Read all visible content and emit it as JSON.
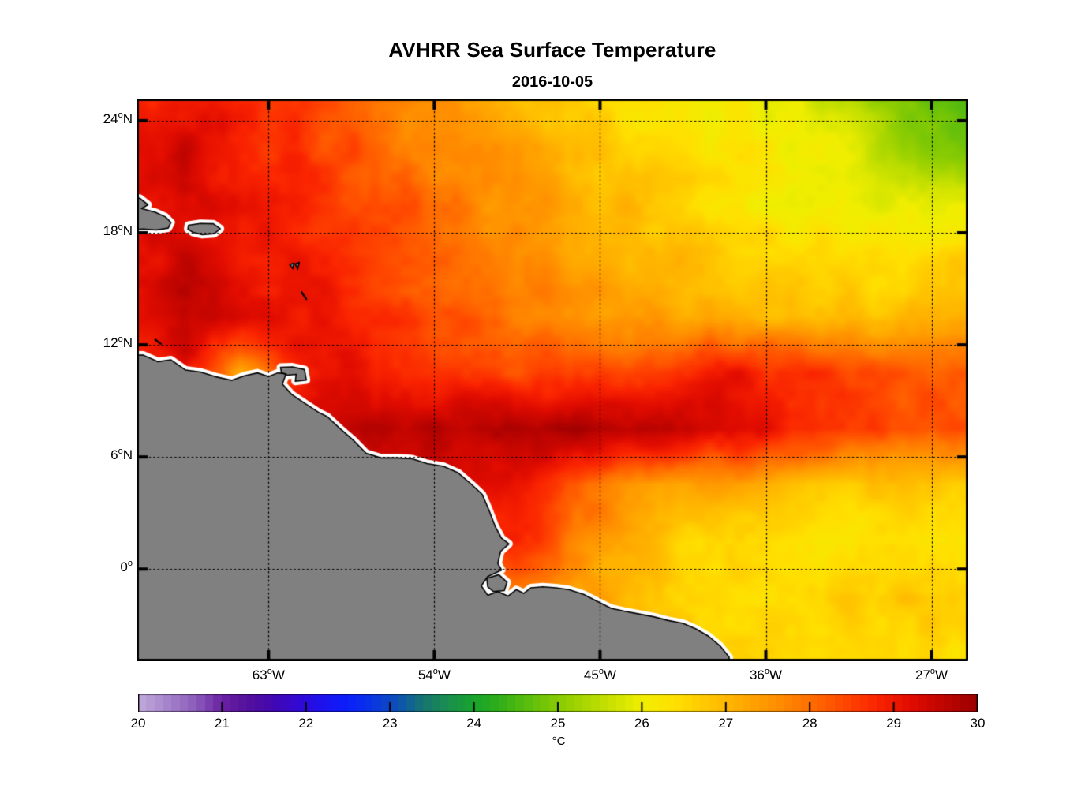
{
  "title": "AVHRR Sea Surface Temperature",
  "subtitle": "2016-10-05",
  "chart_data": {
    "type": "heatmap",
    "title": "AVHRR Sea Surface Temperature",
    "subtitle": "2016-10-05",
    "extent": {
      "lon_left_w": 70.17,
      "lon_right_w": 25.01,
      "lat_top": 25.18,
      "lat_bottom": -4.93
    },
    "lat_ticks": [
      {
        "deg": 24,
        "num": "24",
        "sup": "o",
        "dir": "N"
      },
      {
        "deg": 18,
        "num": "18",
        "sup": "o",
        "dir": "N"
      },
      {
        "deg": 12,
        "num": "12",
        "sup": "o",
        "dir": "N"
      },
      {
        "deg": 6,
        "num": "6",
        "sup": "o",
        "dir": "N"
      },
      {
        "deg": 0,
        "num": "0",
        "sup": "o",
        "dir": ""
      }
    ],
    "lon_ticks": [
      {
        "deg": 63,
        "num": "63",
        "sup": "o",
        "dir": "W"
      },
      {
        "deg": 54,
        "num": "54",
        "sup": "o",
        "dir": "W"
      },
      {
        "deg": 45,
        "num": "45",
        "sup": "o",
        "dir": "W"
      },
      {
        "deg": 36,
        "num": "36",
        "sup": "o",
        "dir": "W"
      },
      {
        "deg": 27,
        "num": "27",
        "sup": "o",
        "dir": "W"
      }
    ],
    "grid": {
      "lons_w": [
        70.5,
        67.5,
        64.5,
        61.5,
        58.5,
        55.5,
        52.5,
        49.5,
        46.5,
        43.5,
        40.5,
        37.5,
        34.5,
        31.5,
        28.5,
        25.5
      ],
      "lats": [
        25.5,
        22.5,
        19.5,
        16.5,
        13.5,
        10.5,
        7.5,
        4.5,
        1.5,
        -1.5,
        -4.5
      ],
      "sst_c": [
        [
          28.7,
          28.9,
          28.7,
          28.5,
          28.1,
          27.6,
          27.2,
          26.9,
          26.6,
          26.4,
          26.2,
          26.1,
          25.9,
          25.5,
          24.8,
          24.5
        ],
        [
          29.2,
          29.4,
          28.9,
          28.6,
          28.3,
          27.9,
          27.5,
          27.3,
          26.9,
          26.6,
          26.4,
          26.2,
          26.1,
          25.8,
          25.1,
          24.9
        ],
        [
          29.3,
          29.2,
          29.0,
          28.8,
          28.5,
          28.2,
          27.8,
          27.5,
          27.2,
          26.9,
          26.6,
          26.3,
          26.0,
          26.0,
          25.9,
          26.0
        ],
        [
          29.1,
          29.5,
          29.1,
          28.9,
          28.7,
          28.4,
          28.0,
          27.7,
          27.4,
          27.1,
          26.9,
          26.7,
          26.5,
          26.4,
          26.4,
          26.6
        ],
        [
          29.0,
          29.5,
          29.3,
          29.0,
          28.8,
          28.5,
          28.2,
          27.9,
          27.6,
          27.4,
          27.2,
          27.1,
          27.0,
          26.9,
          26.9,
          27.0
        ],
        [
          28.8,
          29.2,
          27.4,
          28.9,
          29.1,
          28.9,
          28.6,
          28.4,
          28.3,
          28.5,
          28.8,
          29.0,
          28.7,
          28.4,
          28.2,
          28.1
        ],
        [
          29.0,
          29.0,
          29.2,
          29.3,
          29.5,
          29.6,
          29.7,
          29.8,
          29.9,
          29.8,
          29.6,
          29.4,
          28.9,
          28.5,
          28.5,
          28.4
        ],
        [
          29.0,
          29.0,
          29.0,
          29.0,
          29.0,
          29.1,
          29.3,
          29.1,
          28.3,
          27.6,
          27.3,
          27.3,
          27.0,
          26.8,
          26.7,
          26.8
        ],
        [
          28.8,
          28.8,
          28.8,
          28.8,
          28.8,
          28.8,
          28.8,
          28.7,
          27.9,
          27.1,
          26.6,
          26.4,
          26.3,
          26.3,
          26.4,
          26.4
        ],
        [
          27.5,
          27.5,
          27.5,
          27.5,
          27.5,
          27.5,
          27.5,
          27.6,
          27.4,
          27.0,
          26.7,
          26.6,
          26.6,
          26.7,
          26.8,
          26.8
        ],
        [
          27.0,
          27.0,
          27.0,
          27.0,
          27.0,
          27.0,
          27.0,
          27.0,
          27.0,
          26.8,
          26.6,
          26.5,
          26.5,
          26.6,
          26.6,
          26.5
        ]
      ]
    },
    "colormap": [
      [
        20.0,
        "#c2aadb"
      ],
      [
        20.35,
        "#a684cb"
      ],
      [
        20.7,
        "#8a5bba"
      ],
      [
        21.0,
        "#6b21a3"
      ],
      [
        21.3,
        "#53119b"
      ],
      [
        21.6,
        "#4307b0"
      ],
      [
        21.9,
        "#3309d2"
      ],
      [
        22.2,
        "#1c11ee"
      ],
      [
        22.5,
        "#0a20fb"
      ],
      [
        22.8,
        "#0935e3"
      ],
      [
        23.1,
        "#0d51b3"
      ],
      [
        23.4,
        "#15756f"
      ],
      [
        23.7,
        "#1b8f4e"
      ],
      [
        24.0,
        "#17a32c"
      ],
      [
        24.3,
        "#2fae19"
      ],
      [
        24.6,
        "#55bb0e"
      ],
      [
        24.9,
        "#7cc705"
      ],
      [
        25.2,
        "#9cd200"
      ],
      [
        25.6,
        "#c6e000"
      ],
      [
        26.0,
        "#f0ee00"
      ],
      [
        26.4,
        "#ffe000"
      ],
      [
        26.9,
        "#ffbe00"
      ],
      [
        27.4,
        "#ff9d00"
      ],
      [
        27.9,
        "#ff7800"
      ],
      [
        28.35,
        "#ff4d00"
      ],
      [
        28.8,
        "#fa2400"
      ],
      [
        29.2,
        "#e10c00"
      ],
      [
        29.6,
        "#bf0400"
      ],
      [
        30.0,
        "#990000"
      ]
    ],
    "colorbar": {
      "min": 20,
      "max": 30,
      "segment_step": 0.1,
      "tick_labels": [
        "20",
        "21",
        "22",
        "23",
        "24",
        "25",
        "26",
        "27",
        "28",
        "29",
        "30"
      ],
      "inner_tick_values": [
        21,
        22,
        23,
        24,
        25,
        26,
        27,
        28,
        29
      ],
      "unit": "°C"
    },
    "style": {
      "land_color": "#808080",
      "coast_halo_color": "#ffffff",
      "coast_line_color": "#000000",
      "frame_color": "#000000",
      "grid_line_color": "#000000",
      "background": "#ffffff"
    },
    "land_polygons": [
      {
        "name": "south-america-mainland",
        "draw": "fill",
        "halo": true,
        "points": [
          [
            73,
            11.5
          ],
          [
            69.8,
            11.45
          ],
          [
            69.0,
            11.1
          ],
          [
            68.3,
            11.2
          ],
          [
            67.5,
            10.65
          ],
          [
            66.7,
            10.55
          ],
          [
            65.9,
            10.3
          ],
          [
            65.0,
            10.1
          ],
          [
            64.3,
            10.35
          ],
          [
            63.6,
            10.5
          ],
          [
            63.0,
            10.3
          ],
          [
            62.5,
            10.5
          ],
          [
            62.05,
            10.45
          ],
          [
            62.25,
            9.9
          ],
          [
            61.75,
            9.35
          ],
          [
            61.0,
            8.85
          ],
          [
            60.3,
            8.4
          ],
          [
            59.8,
            8.15
          ],
          [
            59.1,
            7.5
          ],
          [
            58.4,
            6.9
          ],
          [
            57.7,
            6.2
          ],
          [
            56.9,
            5.95
          ],
          [
            56.0,
            5.95
          ],
          [
            55.2,
            5.9
          ],
          [
            54.4,
            5.65
          ],
          [
            53.5,
            5.5
          ],
          [
            52.7,
            5.15
          ],
          [
            52.0,
            4.55
          ],
          [
            51.4,
            4.0
          ],
          [
            51.05,
            3.2
          ],
          [
            50.7,
            2.3
          ],
          [
            50.35,
            1.65
          ],
          [
            49.95,
            1.35
          ],
          [
            50.4,
            0.95
          ],
          [
            50.55,
            0.3
          ],
          [
            50.35,
            -0.05
          ],
          [
            51.1,
            -0.4
          ],
          [
            51.45,
            -0.9
          ],
          [
            51.1,
            -1.4
          ],
          [
            50.55,
            -1.2
          ],
          [
            50.0,
            -1.45
          ],
          [
            49.55,
            -1.1
          ],
          [
            49.15,
            -1.3
          ],
          [
            48.75,
            -1.0
          ],
          [
            48.1,
            -0.95
          ],
          [
            47.4,
            -1.0
          ],
          [
            46.7,
            -1.1
          ],
          [
            45.9,
            -1.35
          ],
          [
            45.1,
            -1.75
          ],
          [
            44.4,
            -2.1
          ],
          [
            43.7,
            -2.25
          ],
          [
            42.9,
            -2.4
          ],
          [
            42.1,
            -2.55
          ],
          [
            41.3,
            -2.75
          ],
          [
            40.5,
            -2.9
          ],
          [
            39.8,
            -3.2
          ],
          [
            39.1,
            -3.6
          ],
          [
            38.5,
            -4.1
          ],
          [
            38.0,
            -4.7
          ],
          [
            37.8,
            -6.5
          ],
          [
            73,
            -6.5
          ]
        ]
      },
      {
        "name": "marajo-island",
        "draw": "fill",
        "halo": true,
        "points": [
          [
            51.15,
            -0.5
          ],
          [
            50.5,
            -0.3
          ],
          [
            50.05,
            -0.7
          ],
          [
            50.2,
            -1.15
          ],
          [
            50.8,
            -1.2
          ],
          [
            51.1,
            -0.95
          ]
        ]
      },
      {
        "name": "hispaniola-east",
        "draw": "fill",
        "halo": true,
        "points": [
          [
            73,
            19.9
          ],
          [
            70.0,
            19.85
          ],
          [
            69.55,
            19.5
          ],
          [
            69.9,
            19.3
          ],
          [
            69.15,
            19.1
          ],
          [
            68.6,
            18.85
          ],
          [
            68.3,
            18.55
          ],
          [
            68.45,
            18.25
          ],
          [
            69.1,
            18.15
          ],
          [
            69.8,
            18.2
          ],
          [
            73,
            18.0
          ]
        ]
      },
      {
        "name": "puerto-rico",
        "draw": "fill",
        "halo": true,
        "points": [
          [
            67.35,
            18.4
          ],
          [
            66.7,
            18.5
          ],
          [
            66.0,
            18.48
          ],
          [
            65.62,
            18.22
          ],
          [
            65.95,
            17.95
          ],
          [
            66.6,
            17.9
          ],
          [
            67.1,
            18.02
          ],
          [
            67.38,
            18.2
          ]
        ]
      },
      {
        "name": "trinidad",
        "draw": "fill",
        "halo": true,
        "points": [
          [
            62.35,
            10.8
          ],
          [
            61.7,
            10.82
          ],
          [
            61.05,
            10.68
          ],
          [
            60.95,
            10.12
          ],
          [
            61.55,
            10.05
          ],
          [
            61.5,
            10.42
          ],
          [
            62.0,
            10.38
          ],
          [
            62.3,
            10.52
          ]
        ]
      },
      {
        "name": "guadeloupe-west",
        "draw": "fill",
        "halo": false,
        "points": [
          [
            61.85,
            16.3
          ],
          [
            61.62,
            16.38
          ],
          [
            61.68,
            16.08
          ]
        ]
      },
      {
        "name": "guadeloupe-east",
        "draw": "fill",
        "halo": false,
        "points": [
          [
            61.55,
            16.33
          ],
          [
            61.33,
            16.42
          ],
          [
            61.42,
            16.05
          ]
        ]
      },
      {
        "name": "martinique",
        "draw": "line",
        "halo": false,
        "points": [
          [
            61.2,
            14.82
          ],
          [
            60.95,
            14.45
          ]
        ]
      },
      {
        "name": "curacao",
        "draw": "line",
        "halo": false,
        "points": [
          [
            69.15,
            12.28
          ],
          [
            68.85,
            12.05
          ]
        ]
      }
    ]
  }
}
